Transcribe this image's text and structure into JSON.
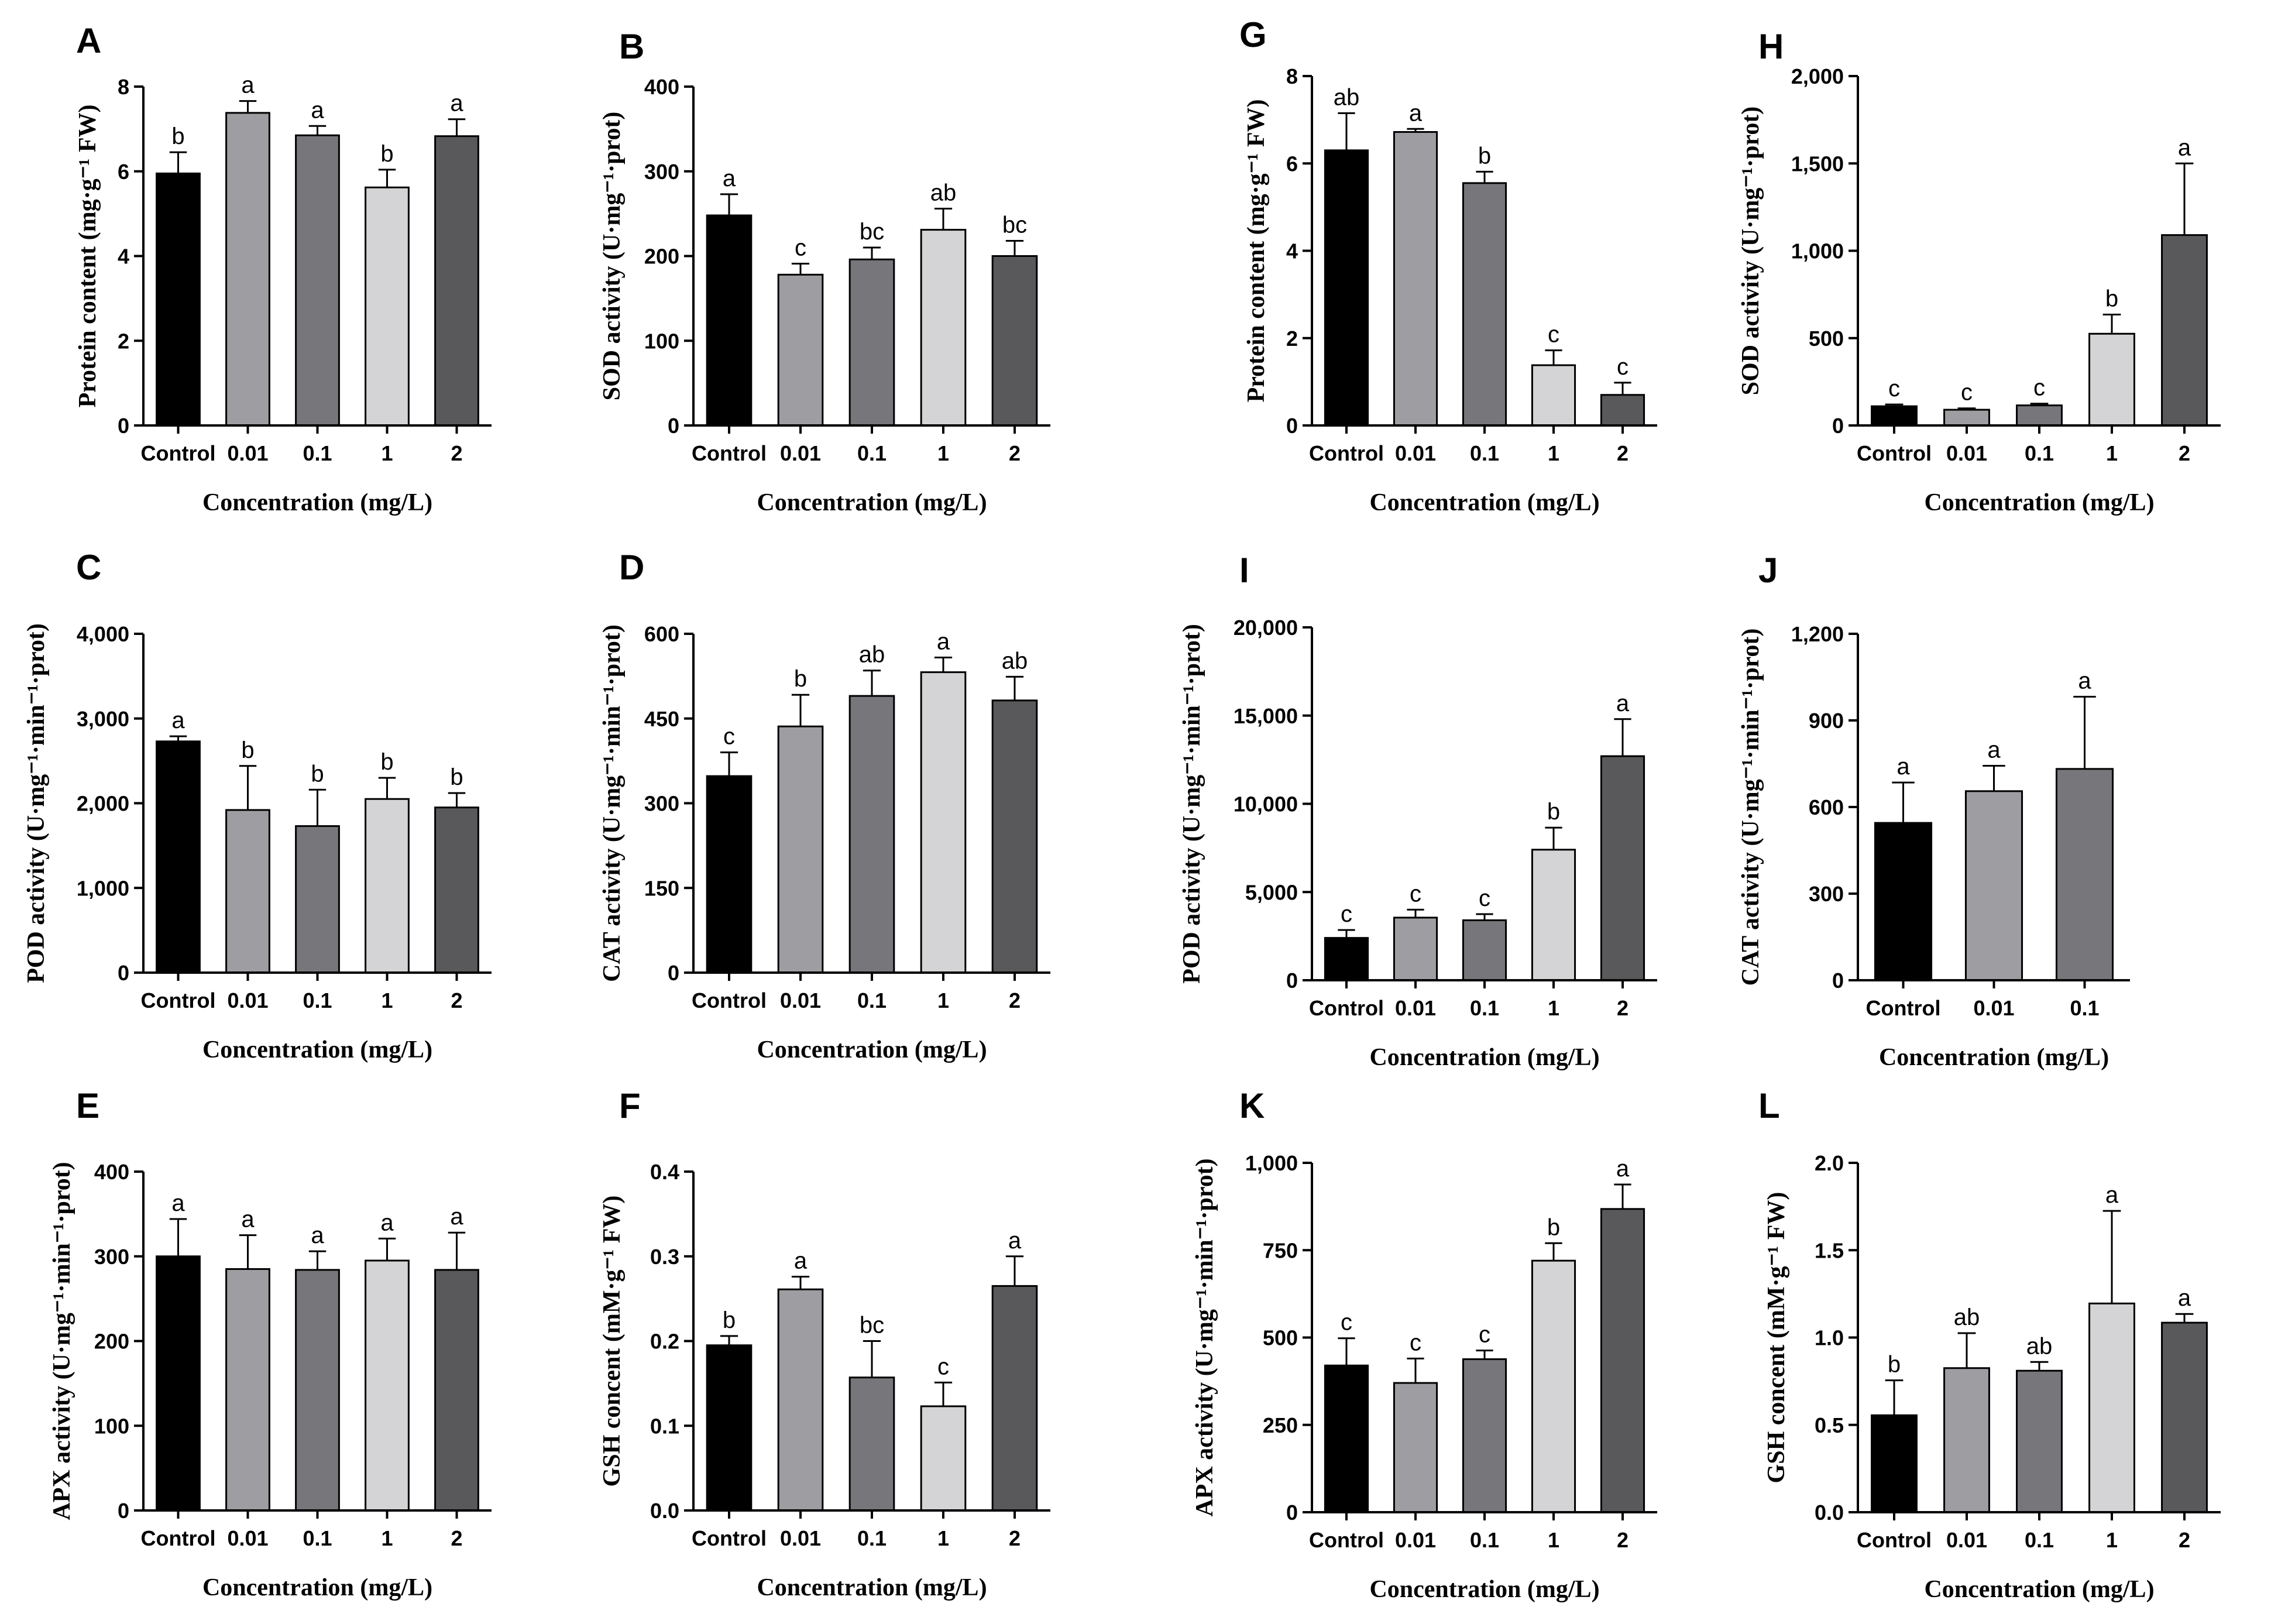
{
  "chart_data": [
    {
      "letter": "A",
      "type": "bar",
      "ylabel": "Protein content (mg·g⁻¹ FW)",
      "xlabel": "Concentration (mg/L)",
      "categories": [
        "Control",
        "0.01",
        "0.1",
        "1",
        "2"
      ],
      "values": [
        5.95,
        7.38,
        6.85,
        5.62,
        6.83
      ],
      "errors": [
        0.5,
        0.28,
        0.22,
        0.42,
        0.4
      ],
      "sig": [
        "b",
        "a",
        "a",
        "b",
        "a"
      ],
      "ylim": [
        0,
        8
      ],
      "yticks": [
        0,
        2,
        4,
        6,
        8
      ],
      "ytick_labels": [
        "0",
        "2",
        "4",
        "6",
        "8"
      ]
    },
    {
      "letter": "B",
      "type": "bar",
      "ylabel": "SOD activity (U·mg⁻¹·prot)",
      "xlabel": "Concentration (mg/L)",
      "categories": [
        "Control",
        "0.01",
        "0.1",
        "1",
        "2"
      ],
      "values": [
        248,
        178,
        196,
        231,
        200
      ],
      "errors": [
        25,
        13,
        14,
        25,
        18
      ],
      "sig": [
        "a",
        "c",
        "bc",
        "ab",
        "bc"
      ],
      "ylim": [
        0,
        400
      ],
      "yticks": [
        0,
        100,
        200,
        300,
        400
      ],
      "ytick_labels": [
        "0",
        "100",
        "200",
        "300",
        "400"
      ]
    },
    {
      "letter": "C",
      "type": "bar",
      "ylabel": "POD activity (U·mg⁻¹·min⁻¹·prot)",
      "xlabel": "Concentration (mg/L)",
      "categories": [
        "Control",
        "0.01",
        "0.1",
        "1",
        "2"
      ],
      "values": [
        2730,
        1920,
        1730,
        2050,
        1950
      ],
      "errors": [
        60,
        520,
        430,
        250,
        170
      ],
      "sig": [
        "a",
        "b",
        "b",
        "b",
        "b"
      ],
      "ylim": [
        0,
        4000
      ],
      "yticks": [
        0,
        1000,
        2000,
        3000,
        4000
      ],
      "ytick_labels": [
        "0",
        "1,000",
        "2,000",
        "3,000",
        "4,000"
      ]
    },
    {
      "letter": "D",
      "type": "bar",
      "ylabel": "CAT activity (U·mg⁻¹·min⁻¹·prot)",
      "xlabel": "Concentration (mg/L)",
      "categories": [
        "Control",
        "0.01",
        "0.1",
        "1",
        "2"
      ],
      "values": [
        348,
        436,
        490,
        532,
        482
      ],
      "errors": [
        42,
        56,
        45,
        26,
        42
      ],
      "sig": [
        "c",
        "b",
        "ab",
        "a",
        "ab"
      ],
      "ylim": [
        0,
        600
      ],
      "yticks": [
        0,
        150,
        300,
        450,
        600
      ],
      "ytick_labels": [
        "0",
        "150",
        "300",
        "450",
        "600"
      ]
    },
    {
      "letter": "E",
      "type": "bar",
      "ylabel": "APX activity (U·mg⁻¹·min⁻¹·prot)",
      "xlabel": "Concentration (mg/L)",
      "categories": [
        "Control",
        "0.01",
        "0.1",
        "1",
        "2"
      ],
      "values": [
        300,
        285,
        284,
        295,
        284
      ],
      "errors": [
        44,
        40,
        22,
        26,
        44
      ],
      "sig": [
        "a",
        "a",
        "a",
        "a",
        "a"
      ],
      "ylim": [
        0,
        400
      ],
      "yticks": [
        0,
        100,
        200,
        300,
        400
      ],
      "ytick_labels": [
        "0",
        "100",
        "200",
        "300",
        "400"
      ]
    },
    {
      "letter": "F",
      "type": "bar",
      "ylabel": "GSH concent (mM·g⁻¹ FW)",
      "xlabel": "Concentration (mg/L)",
      "categories": [
        "Control",
        "0.01",
        "0.1",
        "1",
        "2"
      ],
      "values": [
        0.195,
        0.261,
        0.157,
        0.123,
        0.265
      ],
      "errors": [
        0.011,
        0.015,
        0.043,
        0.028,
        0.035
      ],
      "sig": [
        "b",
        "a",
        "bc",
        "c",
        "a"
      ],
      "ylim": [
        0,
        0.4
      ],
      "yticks": [
        0,
        0.1,
        0.2,
        0.3,
        0.4
      ],
      "ytick_labels": [
        "0.0",
        "0.1",
        "0.2",
        "0.3",
        "0.4"
      ]
    },
    {
      "letter": "G",
      "type": "bar",
      "ylabel": "Protein content (mg·g⁻¹ FW)",
      "xlabel": "Concentration (mg/L)",
      "categories": [
        "Control",
        "0.01",
        "0.1",
        "1",
        "2"
      ],
      "values": [
        6.3,
        6.72,
        5.55,
        1.38,
        0.7
      ],
      "errors": [
        0.85,
        0.07,
        0.26,
        0.34,
        0.28
      ],
      "sig": [
        "ab",
        "a",
        "b",
        "c",
        "c"
      ],
      "ylim": [
        0,
        8
      ],
      "yticks": [
        0,
        2,
        4,
        6,
        8
      ],
      "ytick_labels": [
        "0",
        "2",
        "4",
        "6",
        "8"
      ]
    },
    {
      "letter": "H",
      "type": "bar",
      "ylabel": "SOD activity (U·mg⁻¹·prot)",
      "xlabel": "Concentration (mg/L)",
      "categories": [
        "Control",
        "0.01",
        "0.1",
        "1",
        "2"
      ],
      "values": [
        110,
        90,
        115,
        525,
        1090
      ],
      "errors": [
        10,
        8,
        10,
        110,
        410
      ],
      "sig": [
        "c",
        "c",
        "c",
        "b",
        "a"
      ],
      "ylim": [
        0,
        2000
      ],
      "yticks": [
        0,
        500,
        1000,
        1500,
        2000
      ],
      "ytick_labels": [
        "0",
        "500",
        "1,000",
        "1,500",
        "2,000"
      ]
    },
    {
      "letter": "I",
      "type": "bar",
      "ylabel": "POD activity (U·mg⁻¹·min⁻¹·prot)",
      "xlabel": "Concentration (mg/L)",
      "categories": [
        "Control",
        "0.01",
        "0.1",
        "1",
        "2"
      ],
      "values": [
        2400,
        3550,
        3400,
        7400,
        12700
      ],
      "errors": [
        450,
        450,
        350,
        1250,
        2100
      ],
      "sig": [
        "c",
        "c",
        "c",
        "b",
        "a"
      ],
      "ylim": [
        0,
        20000
      ],
      "yticks": [
        0,
        5000,
        10000,
        15000,
        20000
      ],
      "ytick_labels": [
        "0",
        "5,000",
        "10,000",
        "15,000",
        "20,000"
      ]
    },
    {
      "letter": "J",
      "type": "bar",
      "ylabel": "CAT activity (U·mg⁻¹·min⁻¹·prot)",
      "xlabel": "Concentration (mg/L)",
      "categories": [
        "Control",
        "0.01",
        "0.1"
      ],
      "values": [
        545,
        655,
        732
      ],
      "errors": [
        140,
        88,
        250
      ],
      "sig": [
        "a",
        "a",
        "a"
      ],
      "ylim": [
        0,
        1200
      ],
      "yticks": [
        0,
        300,
        600,
        900,
        1200
      ],
      "ytick_labels": [
        "0",
        "300",
        "600",
        "900",
        "1,200"
      ]
    },
    {
      "letter": "K",
      "type": "bar",
      "ylabel": "APX activity (U·mg⁻¹·min⁻¹·prot)",
      "xlabel": "Concentration (mg/L)",
      "categories": [
        "Control",
        "0.01",
        "0.1",
        "1",
        "2"
      ],
      "values": [
        420,
        370,
        438,
        720,
        868
      ],
      "errors": [
        78,
        70,
        25,
        50,
        70
      ],
      "sig": [
        "c",
        "c",
        "c",
        "b",
        "a"
      ],
      "ylim": [
        0,
        1000
      ],
      "yticks": [
        0,
        250,
        500,
        750,
        1000
      ],
      "ytick_labels": [
        "0",
        "250",
        "500",
        "750",
        "1,000"
      ]
    },
    {
      "letter": "L",
      "type": "bar",
      "ylabel": "GSH concent (mM·g⁻¹ FW)",
      "xlabel": "Concentration (mg/L)",
      "categories": [
        "Control",
        "0.01",
        "0.1",
        "1",
        "2"
      ],
      "values": [
        0.555,
        0.825,
        0.81,
        1.195,
        1.085
      ],
      "errors": [
        0.2,
        0.2,
        0.05,
        0.53,
        0.05
      ],
      "sig": [
        "b",
        "ab",
        "ab",
        "a",
        "a"
      ],
      "ylim": [
        0,
        2.0
      ],
      "yticks": [
        0,
        0.5,
        1.0,
        1.5,
        2.0
      ],
      "ytick_labels": [
        "0.0",
        "0.5",
        "1.0",
        "1.5",
        "2.0"
      ]
    }
  ],
  "colors": {
    "bars": [
      "#000000",
      "#9e9ea2",
      "#77777b",
      "#d4d4d6",
      "#59595c"
    ],
    "axis": "#000000"
  }
}
